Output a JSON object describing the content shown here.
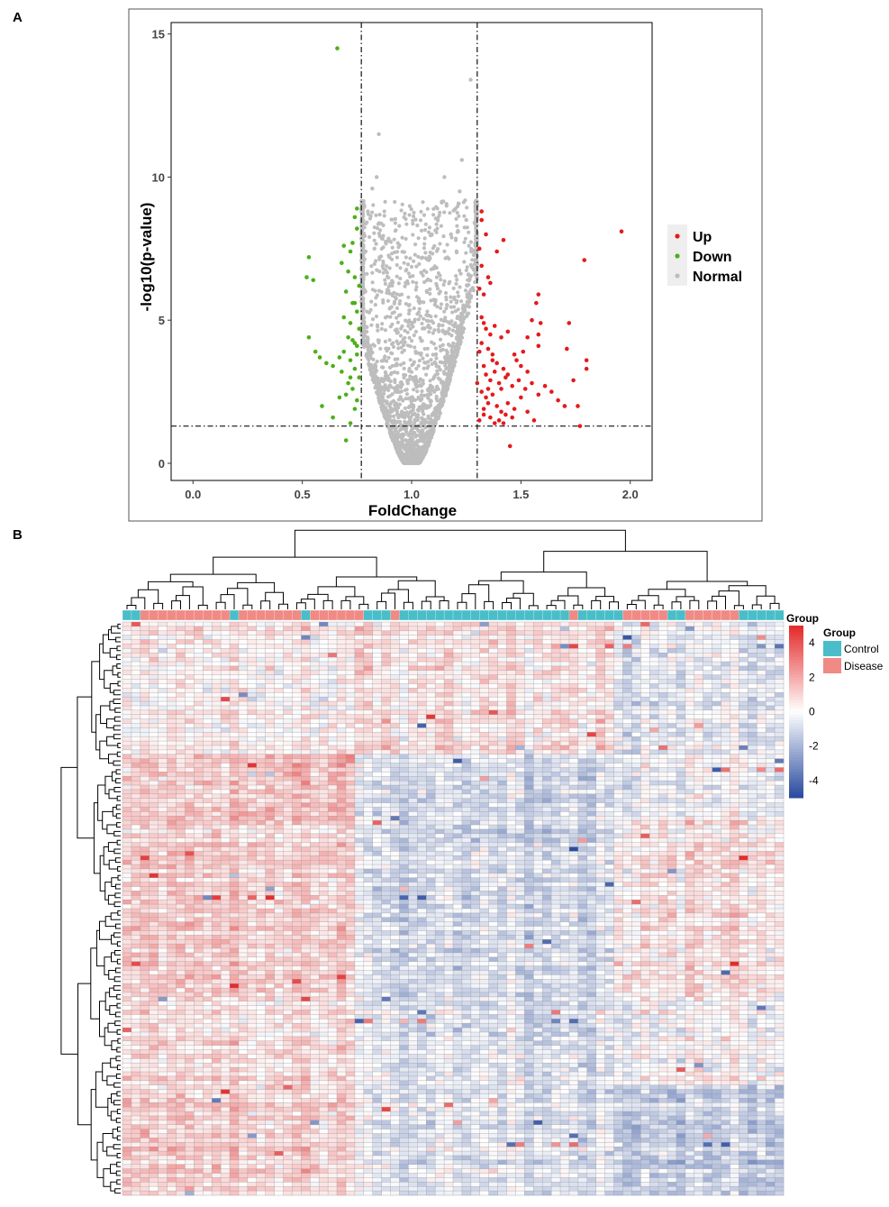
{
  "panels": {
    "a_label": "A",
    "b_label": "B"
  },
  "chart_data": [
    {
      "type": "scatter",
      "panel": "A",
      "title": "",
      "xlabel": "FoldChange",
      "ylabel": "-log10(p-value)",
      "xlim": [
        -0.1,
        2.1
      ],
      "ylim": [
        -0.6,
        15.4
      ],
      "xticks": [
        0.0,
        0.5,
        1.0,
        1.5,
        2.0
      ],
      "xtick_labels": [
        "0.0",
        "0.5",
        "1.0",
        "1.5",
        "2.0"
      ],
      "yticks": [
        0,
        5,
        10,
        15
      ],
      "ytick_labels": [
        "0",
        "5",
        "10",
        "15"
      ],
      "threshold_lines": {
        "vertical": [
          0.77,
          1.3
        ],
        "horizontal": [
          1.3
        ]
      },
      "legend_position": "right",
      "legend": [
        {
          "name": "Up",
          "color": "#e41a1c"
        },
        {
          "name": "Down",
          "color": "#4daf1a"
        },
        {
          "name": "Normal",
          "color": "#bdbdbd"
        }
      ],
      "series": [
        {
          "name": "Up",
          "color": "#e41a1c",
          "points": [
            [
              1.96,
              8.1
            ],
            [
              1.79,
              7.1
            ],
            [
              1.42,
              7.8
            ],
            [
              1.39,
              7.4
            ],
            [
              1.32,
              8.8
            ],
            [
              1.32,
              8.5
            ],
            [
              1.34,
              8.0
            ],
            [
              1.31,
              7.5
            ],
            [
              1.32,
              6.9
            ],
            [
              1.35,
              6.5
            ],
            [
              1.36,
              6.3
            ],
            [
              1.31,
              6.1
            ],
            [
              1.33,
              5.9
            ],
            [
              1.58,
              5.9
            ],
            [
              1.57,
              5.6
            ],
            [
              1.55,
              5.0
            ],
            [
              1.59,
              4.9
            ],
            [
              1.53,
              4.4
            ],
            [
              1.58,
              4.1
            ],
            [
              1.72,
              4.9
            ],
            [
              1.58,
              4.5
            ],
            [
              1.71,
              4.0
            ],
            [
              1.32,
              5.1
            ],
            [
              1.33,
              4.9
            ],
            [
              1.34,
              4.7
            ],
            [
              1.36,
              4.5
            ],
            [
              1.38,
              4.8
            ],
            [
              1.41,
              4.4
            ],
            [
              1.44,
              4.6
            ],
            [
              1.32,
              4.2
            ],
            [
              1.35,
              4.0
            ],
            [
              1.37,
              3.8
            ],
            [
              1.39,
              3.5
            ],
            [
              1.42,
              3.3
            ],
            [
              1.47,
              3.8
            ],
            [
              1.48,
              3.6
            ],
            [
              1.5,
              3.4
            ],
            [
              1.53,
              3.2
            ],
            [
              1.33,
              3.4
            ],
            [
              1.34,
              3.1
            ],
            [
              1.36,
              2.9
            ],
            [
              1.38,
              3.2
            ],
            [
              1.4,
              2.8
            ],
            [
              1.43,
              3.0
            ],
            [
              1.46,
              2.7
            ],
            [
              1.49,
              2.9
            ],
            [
              1.52,
              2.6
            ],
            [
              1.55,
              2.8
            ],
            [
              1.58,
              2.4
            ],
            [
              1.61,
              2.7
            ],
            [
              1.64,
              2.5
            ],
            [
              1.67,
              2.2
            ],
            [
              1.7,
              2.0
            ],
            [
              1.74,
              2.9
            ],
            [
              1.76,
              2.0
            ],
            [
              1.8,
              3.6
            ],
            [
              1.8,
              3.3
            ],
            [
              1.32,
              2.5
            ],
            [
              1.34,
              2.3
            ],
            [
              1.35,
              2.1
            ],
            [
              1.37,
              2.4
            ],
            [
              1.39,
              2.0
            ],
            [
              1.41,
              1.8
            ],
            [
              1.44,
              2.1
            ],
            [
              1.47,
              1.9
            ],
            [
              1.5,
              2.3
            ],
            [
              1.53,
              1.8
            ],
            [
              1.33,
              1.7
            ],
            [
              1.36,
              1.6
            ],
            [
              1.38,
              1.4
            ],
            [
              1.4,
              1.5
            ],
            [
              1.42,
              1.4
            ],
            [
              1.46,
              1.6
            ],
            [
              1.56,
              1.5
            ],
            [
              1.77,
              1.3
            ],
            [
              1.37,
              3.6
            ],
            [
              1.31,
              3.9
            ],
            [
              1.43,
              1.7
            ],
            [
              1.45,
              0.6
            ],
            [
              1.31,
              1.5
            ],
            [
              1.33,
              1.9
            ],
            [
              1.35,
              2.6
            ],
            [
              1.41,
              2.6
            ],
            [
              1.44,
              3.1
            ],
            [
              1.3,
              2.8
            ],
            [
              1.51,
              3.9
            ]
          ]
        },
        {
          "name": "Down",
          "color": "#4daf1a",
          "points": [
            [
              0.66,
              14.5
            ],
            [
              0.75,
              8.9
            ],
            [
              0.74,
              8.6
            ],
            [
              0.75,
              8.2
            ],
            [
              0.73,
              7.7
            ],
            [
              0.72,
              7.4
            ],
            [
              0.53,
              7.2
            ],
            [
              0.68,
              7.0
            ],
            [
              0.71,
              6.7
            ],
            [
              0.74,
              6.5
            ],
            [
              0.52,
              6.5
            ],
            [
              0.55,
              6.4
            ],
            [
              0.76,
              6.2
            ],
            [
              0.7,
              6.0
            ],
            [
              0.73,
              5.6
            ],
            [
              0.75,
              5.3
            ],
            [
              0.69,
              5.1
            ],
            [
              0.72,
              4.9
            ],
            [
              0.76,
              4.7
            ],
            [
              0.71,
              4.4
            ],
            [
              0.74,
              4.2
            ],
            [
              0.53,
              4.4
            ],
            [
              0.73,
              4.3
            ],
            [
              0.75,
              4.1
            ],
            [
              0.69,
              3.9
            ],
            [
              0.67,
              3.7
            ],
            [
              0.72,
              3.6
            ],
            [
              0.56,
              3.9
            ],
            [
              0.58,
              3.7
            ],
            [
              0.61,
              3.5
            ],
            [
              0.64,
              3.4
            ],
            [
              0.68,
              3.2
            ],
            [
              0.74,
              3.3
            ],
            [
              0.76,
              3.0
            ],
            [
              0.71,
              2.8
            ],
            [
              0.73,
              2.6
            ],
            [
              0.7,
              2.4
            ],
            [
              0.67,
              2.3
            ],
            [
              0.59,
              2.0
            ],
            [
              0.64,
              1.6
            ],
            [
              0.74,
              1.9
            ],
            [
              0.72,
              1.4
            ],
            [
              0.7,
              0.8
            ],
            [
              0.75,
              2.2
            ],
            [
              0.75,
              3.8
            ],
            [
              0.74,
              5.6
            ],
            [
              0.72,
              3.0
            ],
            [
              0.69,
              7.6
            ]
          ]
        },
        {
          "name": "Normal",
          "color": "#bdbdbd",
          "generated": "dense V-shaped cloud between the fold-change cutoffs 0.77 and 1.30, apex near (1.0, 0), with outliers up to ~13.4",
          "points": [
            [
              1.27,
              13.4
            ],
            [
              1.23,
              10.6
            ],
            [
              1.22,
              9.5
            ],
            [
              1.16,
              9.0
            ],
            [
              0.85,
              11.5
            ],
            [
              0.84,
              10.0
            ],
            [
              0.82,
              9.6
            ],
            [
              1.15,
              10.0
            ],
            [
              1.25,
              8.5
            ],
            [
              0.8,
              8.8
            ],
            [
              1.18,
              8.0
            ],
            [
              0.83,
              7.5
            ]
          ]
        }
      ]
    },
    {
      "type": "heatmap",
      "panel": "B",
      "title": "",
      "xlabel": "",
      "ylabel": "",
      "n_rows": 130,
      "n_cols": 74,
      "value_range": [
        -5,
        5
      ],
      "colorbar_title": "Group",
      "colorbar_ticks": [
        4,
        2,
        0,
        -2,
        -4
      ],
      "colorbar_tick_labels": [
        "4",
        "2",
        "0",
        "-2",
        "-4"
      ],
      "colors": {
        "low": "#2b4ca0",
        "mid": "#ffffff",
        "high": "#e52c2c"
      },
      "column_annotation": {
        "title": "Group",
        "categories": [
          {
            "name": "Control",
            "color": "#49bec9"
          },
          {
            "name": "Disease",
            "color": "#f08a85"
          }
        ],
        "column_groups": [
          {
            "group": "Control",
            "n": 2
          },
          {
            "group": "Disease",
            "n": 10
          },
          {
            "group": "Control",
            "n": 1
          },
          {
            "group": "Disease",
            "n": 7
          },
          {
            "group": "Control",
            "n": 1
          },
          {
            "group": "Disease",
            "n": 6
          },
          {
            "group": "Control",
            "n": 3
          },
          {
            "group": "Disease",
            "n": 1
          },
          {
            "group": "Control",
            "n": 19
          },
          {
            "group": "Disease",
            "n": 1
          },
          {
            "group": "Control",
            "n": 5
          },
          {
            "group": "Disease",
            "n": 5
          },
          {
            "group": "Control",
            "n": 2
          },
          {
            "group": "Disease",
            "n": 6
          },
          {
            "group": "Control",
            "n": 5
          }
        ]
      },
      "block_patterns": [
        {
          "rows": [
            0,
            30
          ],
          "cols": [
            0,
            26
          ],
          "mean": 0.3
        },
        {
          "rows": [
            0,
            30
          ],
          "cols": [
            26,
            55
          ],
          "mean": 0.8
        },
        {
          "rows": [
            0,
            30
          ],
          "cols": [
            55,
            74
          ],
          "mean": -0.5
        },
        {
          "rows": [
            30,
            45
          ],
          "cols": [
            0,
            12
          ],
          "mean": 1.0
        },
        {
          "rows": [
            30,
            45
          ],
          "cols": [
            12,
            26
          ],
          "mean": 1.6
        },
        {
          "rows": [
            30,
            45
          ],
          "cols": [
            26,
            55
          ],
          "mean": -1.0
        },
        {
          "rows": [
            30,
            45
          ],
          "cols": [
            55,
            74
          ],
          "mean": -0.4
        },
        {
          "rows": [
            45,
            85
          ],
          "cols": [
            0,
            26
          ],
          "mean": 1.1
        },
        {
          "rows": [
            45,
            85
          ],
          "cols": [
            26,
            55
          ],
          "mean": -1.0
        },
        {
          "rows": [
            45,
            85
          ],
          "cols": [
            55,
            74
          ],
          "mean": 0.6
        },
        {
          "rows": [
            85,
            105
          ],
          "cols": [
            0,
            26
          ],
          "mean": 0.8
        },
        {
          "rows": [
            85,
            105
          ],
          "cols": [
            26,
            55
          ],
          "mean": -0.6
        },
        {
          "rows": [
            85,
            105
          ],
          "cols": [
            55,
            74
          ],
          "mean": 0.0
        },
        {
          "rows": [
            105,
            130
          ],
          "cols": [
            0,
            26
          ],
          "mean": 1.2
        },
        {
          "rows": [
            105,
            130
          ],
          "cols": [
            26,
            55
          ],
          "mean": -0.5
        },
        {
          "rows": [
            105,
            130
          ],
          "cols": [
            55,
            74
          ],
          "mean": -1.3
        }
      ]
    }
  ]
}
